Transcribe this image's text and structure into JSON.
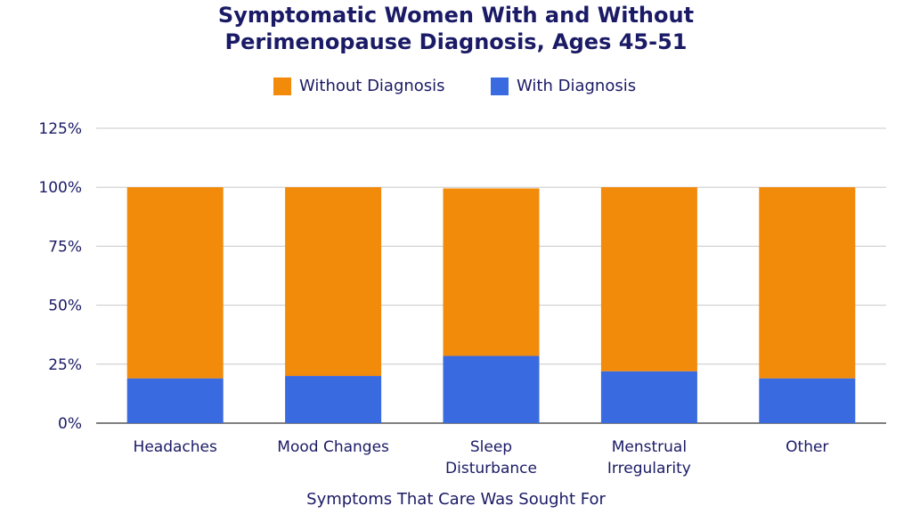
{
  "chart_data": {
    "type": "bar",
    "stacked": true,
    "title_lines": [
      "Symptomatic Women With and Without",
      "Perimenopause Diagnosis, Ages 45-51"
    ],
    "xlabel": "Symptoms That Care Was Sought For",
    "ylabel": "",
    "categories": [
      "Headaches",
      "Mood Changes",
      "Sleep Disturbance",
      "Menstrual Irregularity",
      "Other"
    ],
    "category_lines": [
      [
        "Headaches"
      ],
      [
        "Mood Changes"
      ],
      [
        "Sleep",
        "Disturbance"
      ],
      [
        "Menstrual",
        "Irregularity"
      ],
      [
        "Other"
      ]
    ],
    "series": [
      {
        "name": "With Diagnosis",
        "color": "#3a6ae0",
        "values": [
          19,
          20,
          28.5,
          22,
          19
        ]
      },
      {
        "name": "Without Diagnosis",
        "color": "#f28a0a",
        "values": [
          81,
          80,
          71,
          78,
          81
        ]
      }
    ],
    "legend": {
      "placement": "top",
      "order": [
        "Without Diagnosis",
        "With Diagnosis"
      ]
    },
    "ylim": [
      0,
      125
    ],
    "yticks": [
      0,
      25,
      50,
      75,
      100,
      125
    ],
    "ytick_labels": [
      "0%",
      "25%",
      "50%",
      "75%",
      "100%",
      "125%"
    ],
    "grid": true
  }
}
